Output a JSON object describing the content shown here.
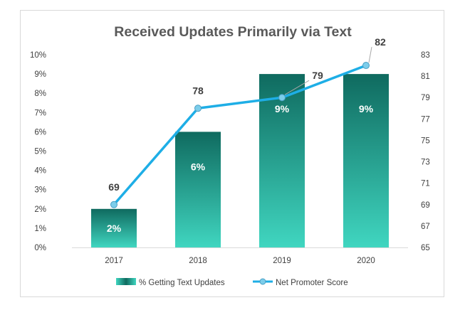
{
  "chart_data": {
    "type": "bar",
    "title": "Received Updates Primarily via Text",
    "categories": [
      "2017",
      "2018",
      "2019",
      "2020"
    ],
    "series": [
      {
        "name": "% Getting Text Updates",
        "type": "bar",
        "axis": "left",
        "values": [
          2,
          6,
          9,
          9
        ],
        "labels": [
          "2%",
          "6%",
          "9%",
          "9%"
        ]
      },
      {
        "name": "Net Promoter Score",
        "type": "line",
        "axis": "right",
        "values": [
          69,
          78,
          79,
          82
        ],
        "labels": [
          "69",
          "78",
          "79",
          "82"
        ]
      }
    ],
    "y_left": {
      "ylim": [
        0,
        10
      ],
      "ticks": [
        "0%",
        "1%",
        "2%",
        "3%",
        "4%",
        "5%",
        "6%",
        "7%",
        "8%",
        "9%",
        "10%"
      ]
    },
    "y_right": {
      "ylim": [
        65,
        83
      ],
      "ticks": [
        "65",
        "67",
        "69",
        "71",
        "73",
        "75",
        "77",
        "79",
        "81",
        "83"
      ]
    },
    "grid": false,
    "legend": "bottom",
    "colors": {
      "bar_top": "#0f6a5f",
      "bar_bottom": "#40d6c0",
      "line": "#1eaee6",
      "marker": "#7ccdea",
      "title": "#595959",
      "axis_text": "#404040",
      "label_dark": "#404040",
      "label_light": "#ffffff"
    }
  }
}
